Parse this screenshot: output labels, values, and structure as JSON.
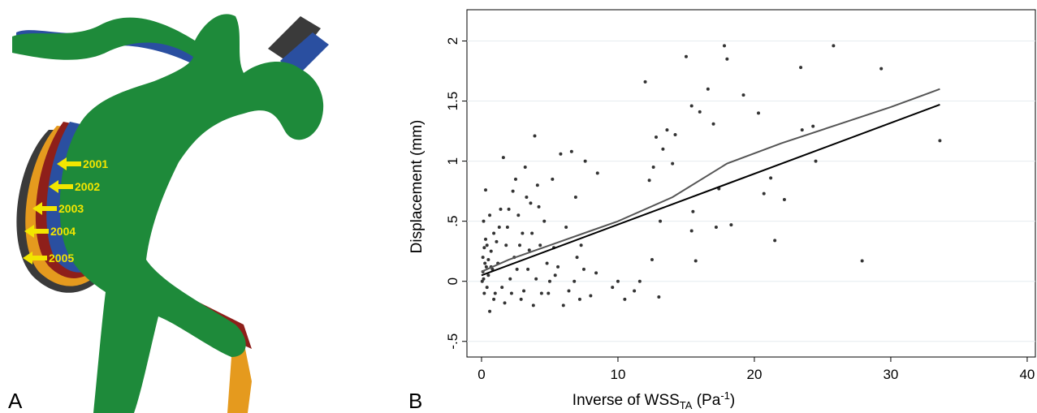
{
  "figure_a": {
    "label": "A",
    "arrow_labels": [
      "2001",
      "2002",
      "2003",
      "2004",
      "2005"
    ]
  },
  "chart_data": {
    "type": "scatter",
    "panel_label": "B",
    "y_label": "Displacement (mm)",
    "x_label": [
      "Inverse of WSS",
      "TA",
      " (Pa",
      "-1",
      ")"
    ],
    "xlim": [
      -1.07,
      40.6
    ],
    "ylim": [
      -0.63,
      2.26
    ],
    "xticks": [
      0,
      10,
      20,
      30,
      40
    ],
    "yticks": [
      {
        "value": -0.5,
        "label": "-.5"
      },
      0,
      {
        "value": 0.5,
        "label": ".5"
      },
      1,
      1.5,
      2
    ],
    "grid": true,
    "series": [
      {
        "type": "scatter",
        "color": "#333333",
        "x": [
          33.6,
          29.3,
          25.8,
          23.4,
          27.9,
          24.5,
          24.3,
          23.5,
          22.2,
          21.5,
          21.2,
          20.7,
          20.3,
          19.2,
          18.0,
          17.8,
          18.3,
          17.4,
          17.0,
          16.6,
          17.2,
          16.0,
          15.4,
          15.0,
          15.5,
          15.7,
          15.4,
          14.0,
          14.2,
          13.6,
          13.3,
          12.6,
          12.3,
          12.0,
          12.5,
          13.1,
          13.0,
          12.8,
          11.6,
          11.2,
          10.5,
          10.0,
          9.6,
          8.5,
          8.4,
          7.6,
          7.5,
          7.3,
          7.0,
          6.9,
          6.6,
          6.0,
          5.8,
          6.2,
          5.6,
          5.2,
          5.0,
          4.9,
          4.6,
          4.3,
          4.1,
          3.9,
          3.8,
          3.6,
          3.4,
          3.2,
          3.0,
          2.9,
          2.7,
          2.5,
          2.4,
          2.2,
          2.0,
          1.8,
          1.6,
          1.5,
          1.3,
          1.2,
          1.0,
          0.9,
          0.8,
          0.7,
          0.6,
          0.5,
          0.4,
          0.3,
          0.25,
          0.2,
          0.15,
          0.1,
          0.05,
          0.3,
          0.5,
          0.1,
          0.4,
          0.7,
          1.1,
          1.4,
          2.1,
          2.6,
          3.1,
          3.5,
          4.0,
          4.4,
          4.8,
          5.4,
          6.4,
          7.2,
          8.0,
          2.3,
          3.3,
          4.2,
          1.9,
          0.6,
          0.2,
          1.7,
          2.8,
          3.7,
          5.3,
          6.8,
          0.9,
          0.35,
          0.15
        ],
        "values": [
          1.17,
          1.77,
          1.96,
          1.78,
          0.17,
          1.0,
          1.29,
          1.26,
          0.68,
          0.34,
          0.86,
          0.73,
          1.4,
          1.55,
          1.85,
          1.96,
          0.47,
          0.77,
          1.31,
          1.6,
          0.45,
          1.41,
          1.46,
          1.87,
          0.58,
          0.17,
          0.42,
          0.98,
          1.22,
          1.26,
          1.1,
          0.95,
          0.84,
          1.66,
          0.18,
          0.5,
          -0.13,
          1.2,
          0.0,
          -0.08,
          -0.15,
          0.0,
          -0.05,
          0.9,
          0.07,
          1.0,
          0.1,
          0.3,
          0.2,
          0.7,
          1.08,
          -0.2,
          1.06,
          0.45,
          0.12,
          0.85,
          0.0,
          -0.1,
          0.5,
          0.3,
          0.8,
          1.21,
          -0.2,
          0.65,
          0.1,
          0.95,
          0.4,
          -0.15,
          0.55,
          0.85,
          0.2,
          -0.1,
          0.6,
          0.3,
          1.03,
          -0.05,
          0.45,
          0.15,
          -0.1,
          0.4,
          0.1,
          0.25,
          -0.25,
          0.05,
          0.3,
          0.76,
          0.15,
          -0.1,
          0.5,
          0.2,
          0.0,
          0.35,
          0.18,
          0.08,
          -0.05,
          0.12,
          0.33,
          0.6,
          0.02,
          0.1,
          -0.08,
          0.26,
          0.02,
          -0.1,
          0.15,
          0.05,
          -0.08,
          -0.15,
          -0.12,
          0.75,
          0.7,
          0.62,
          0.45,
          0.55,
          0.28,
          -0.18,
          0.3,
          0.4,
          0.28,
          0.0,
          -0.15,
          0.12,
          0.02
        ]
      },
      {
        "type": "line",
        "color": "#000000",
        "x": [
          0,
          33.6
        ],
        "values": [
          0.05,
          1.47
        ]
      },
      {
        "type": "line",
        "color": "#555555",
        "x": [
          0,
          2,
          5,
          8,
          10,
          14,
          18,
          22,
          26,
          30,
          33.6
        ],
        "values": [
          0.08,
          0.18,
          0.3,
          0.42,
          0.5,
          0.7,
          0.98,
          1.15,
          1.3,
          1.45,
          1.6
        ]
      }
    ]
  }
}
